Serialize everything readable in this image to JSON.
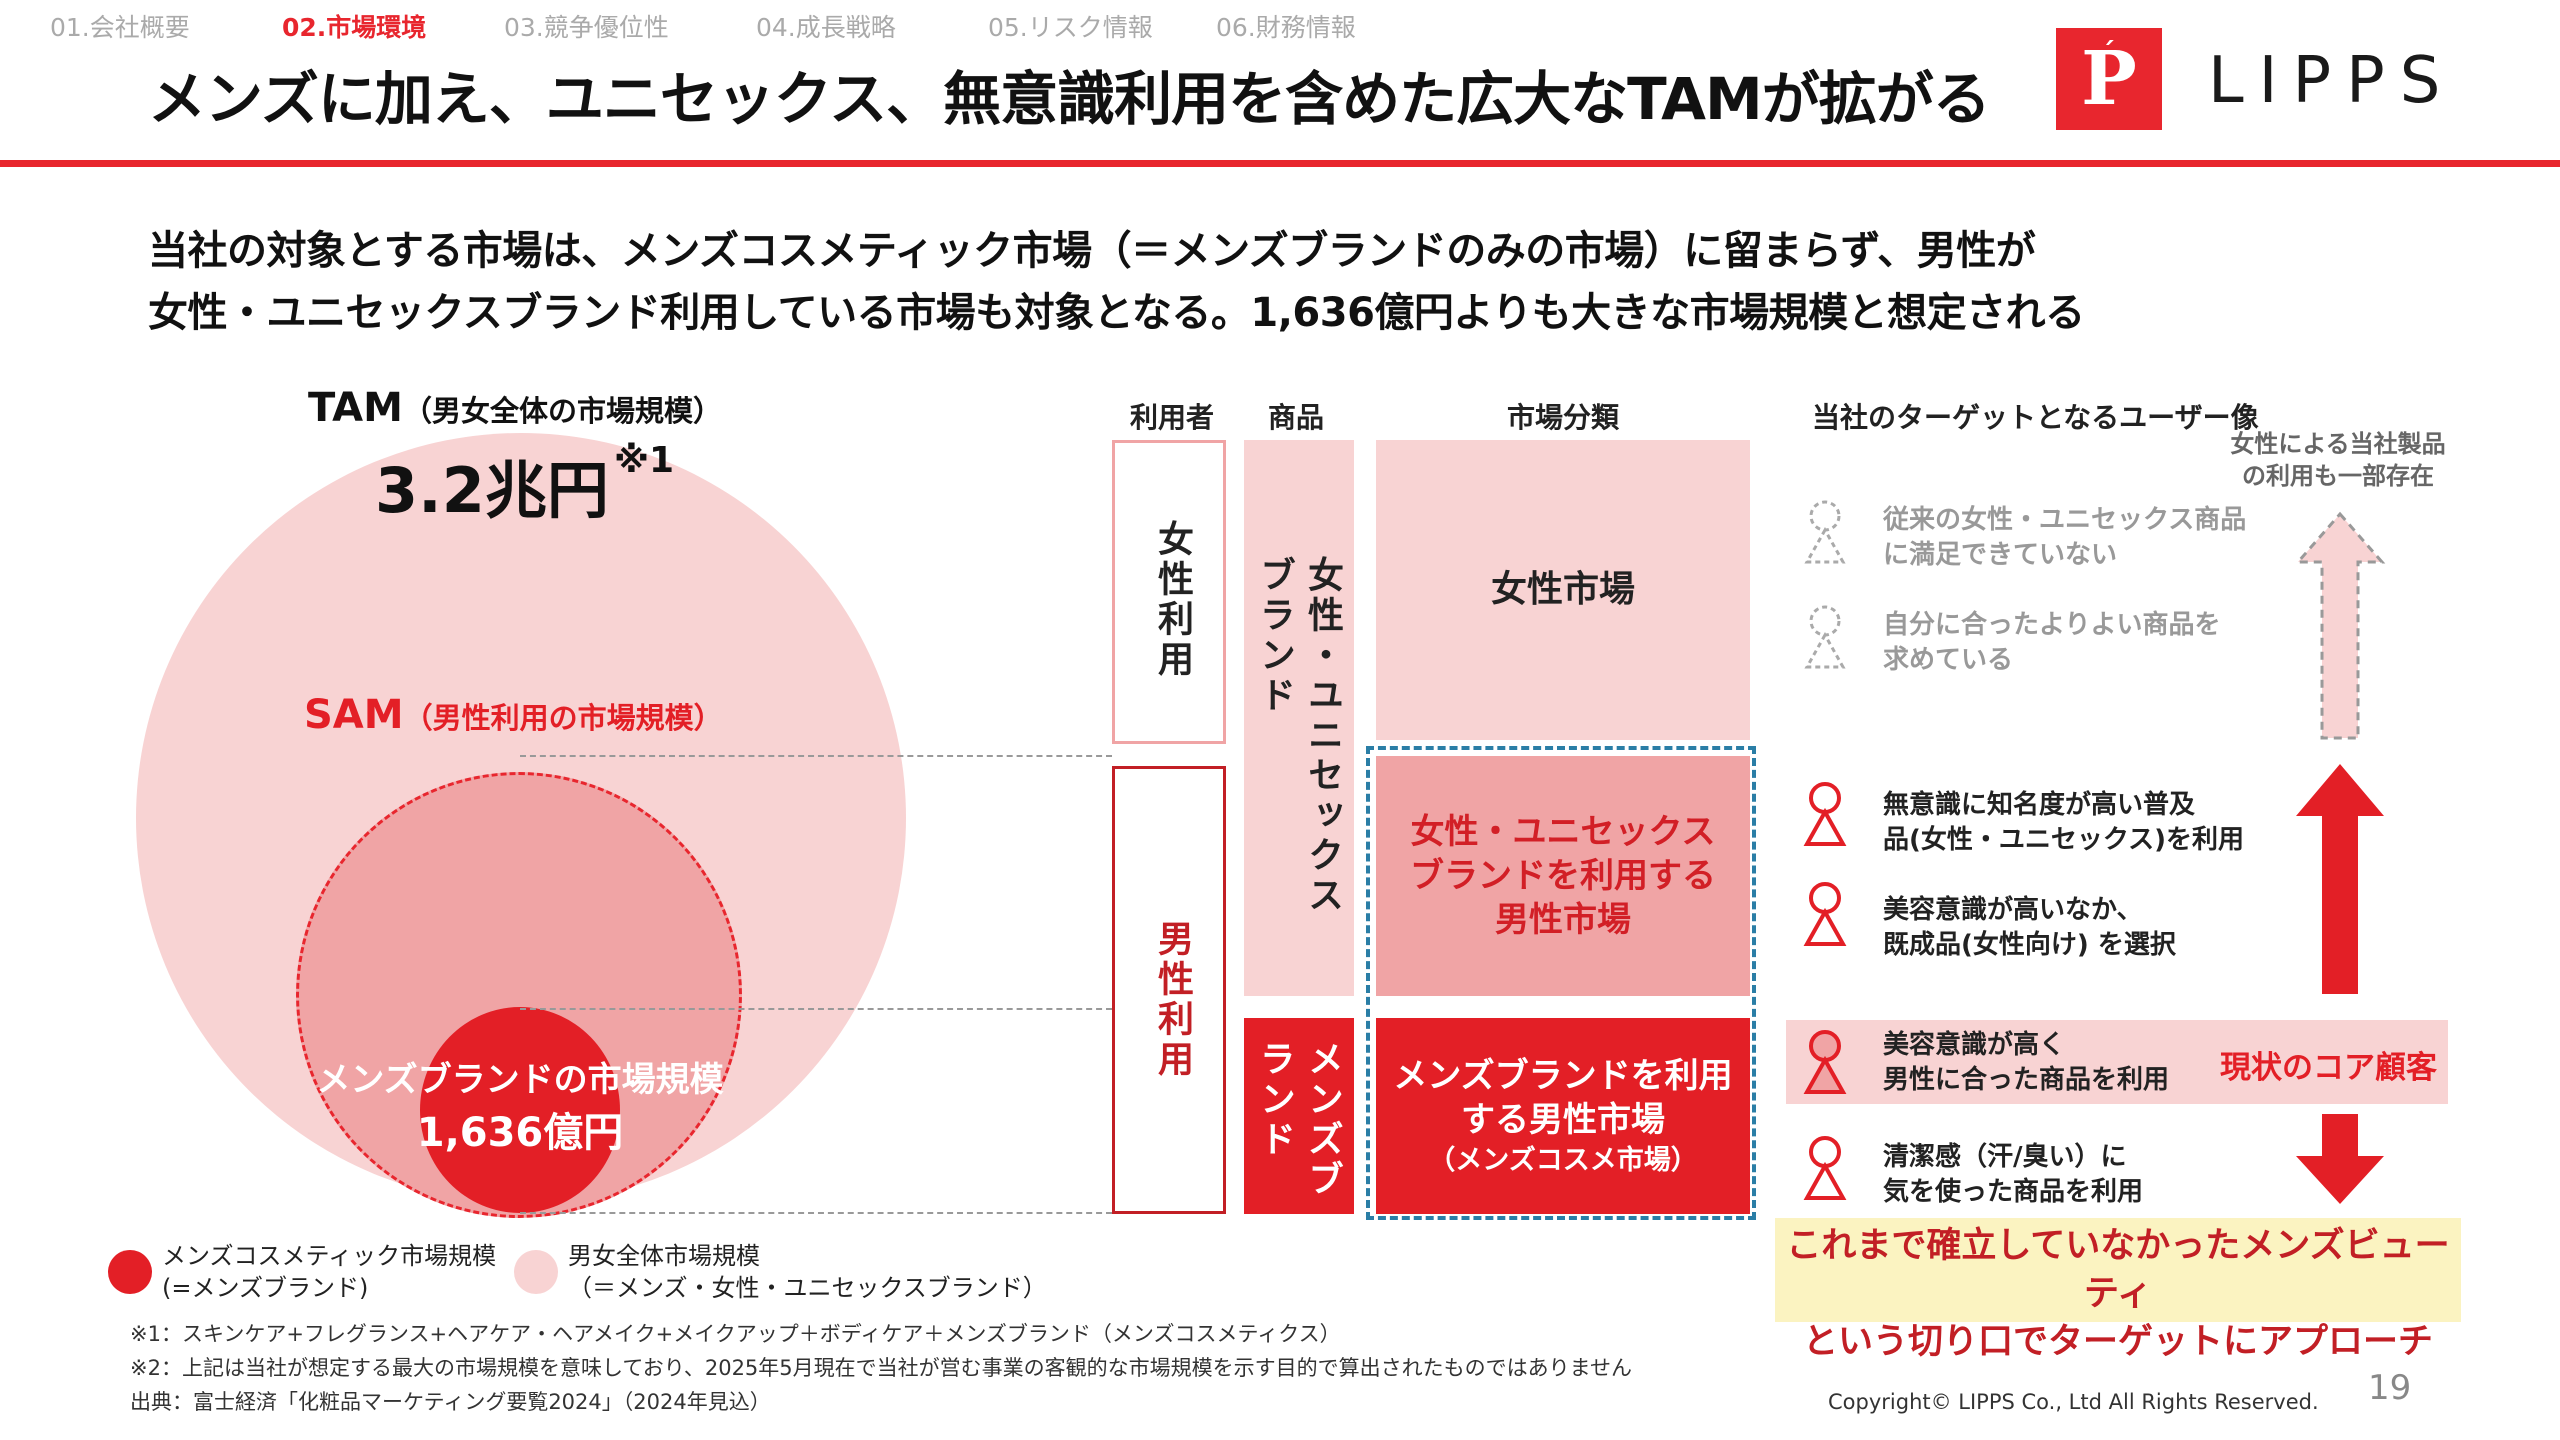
{
  "nav": [
    "01.会社概要",
    "02.市場環境",
    "03.競争優位性",
    "04.成長戦略",
    "05.リスク情報",
    "06.財務情報"
  ],
  "title": "メンズに加え、ユニセックス、無意識利用を含めた広大なTAMが拡がる",
  "logo": {
    "mark": "P",
    "text": "LIPPS"
  },
  "lead": [
    "当社の対象とする市場は、メンズコスメティック市場（＝メンズブランドのみの市場）に留まらず、男性が",
    "女性・ユニセックスブランド利用している市場も対象となる。1,636億円よりも大きな市場規模と想定される"
  ],
  "tam": {
    "label": "TAM",
    "sub": "（男女全体の市場規模）",
    "value": "3.2兆円",
    "note": "※1"
  },
  "sam": {
    "label": "SAM",
    "sub": "（男性利用の市場規模）"
  },
  "mens": {
    "label": "メンズブランドの市場規模",
    "value": "1,636億円"
  },
  "legend": {
    "red_line1": "メンズコスメティック市場規模",
    "red_line2": "(=メンズブランド)",
    "pink_line1": "男女全体市場規模",
    "pink_line2": "（＝メンズ・女性・ユニセックスブランド）"
  },
  "footnotes": [
    "※1：スキンケア+フレグランス+ヘアケア・ヘアメイク+メイクアップ＋ボディケア＋メンズブランド（メンズコスメティクス）",
    "※2：上記は当社が想定する最大の市場規模を意味しており、2025年5月現在で当社が営む事業の客観的な市場規模を示す目的で算出されたものではありません",
    "出典：富士経済「化粧品マーケティング要覧2024」（2024年見込）"
  ],
  "diagram": {
    "headers": {
      "user": "利用者",
      "product": "商品",
      "market": "市場分類"
    },
    "users": {
      "female": "女性利用",
      "male": "男性利用"
    },
    "products": {
      "female": "女性・ユニセックスブランド",
      "mens": "メンズブランド"
    },
    "markets": {
      "female": "女性市場",
      "unisex_line1": "女性・ユニセックス",
      "unisex_line2": "ブランドを利用する",
      "unisex_line3": "男性市場",
      "mens_line1": "メンズブランドを利用",
      "mens_line2": "する男性市場",
      "mens_line3": "（メンズコスメ市場）"
    }
  },
  "target": {
    "header": "当社のターゲットとなるユーザー像",
    "top_note_line1": "女性による当社製品",
    "top_note_line2": "の利用も一部存在",
    "personas": [
      {
        "line1": "従来の女性・ユニセックス商品",
        "line2": "に満足できていない"
      },
      {
        "line1": "自分に合ったよりよい商品を",
        "line2": "求めている"
      },
      {
        "line1": "無意識に知名度が高い普及",
        "line2": "品(女性・ユニセックス)を利用"
      },
      {
        "line1": "美容意識が高いなか、",
        "line2": "既成品(女性向け) を選択"
      },
      {
        "line1": "美容意識が高く",
        "line2": "男性に合った商品を利用"
      },
      {
        "line1": "清潔感（汗/臭い）に",
        "line2": "気を使った商品を利用"
      }
    ],
    "core_label": "現状のコア顧客",
    "bottom_line1": "これまで確立していなかったメンズビューティ",
    "bottom_line2": "という切り口でターゲットにアプローチ"
  },
  "colors": {
    "accent": "#e8262e",
    "light_pink": "#f8d3d3",
    "mid_pink": "#f0a4a5",
    "dashed_teal": "#2a7ea6",
    "yellow": "#fbf3c1"
  },
  "copyright": "Copyright© LIPPS Co., Ltd All Rights Reserved.",
  "page_number": "19"
}
